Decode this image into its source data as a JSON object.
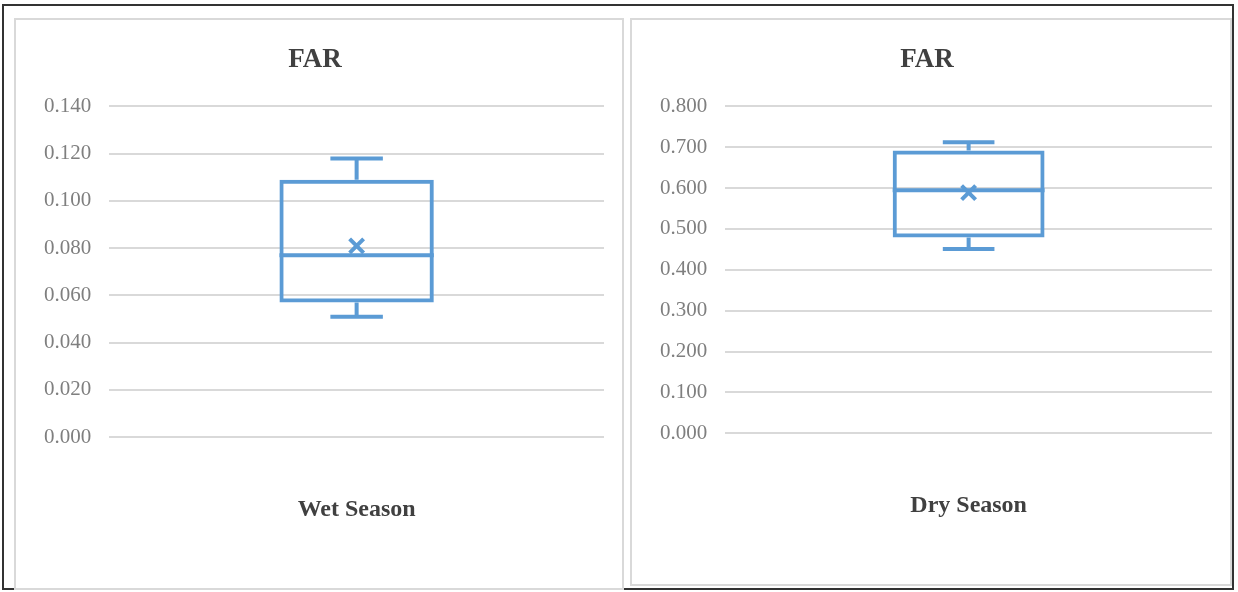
{
  "chart_data": [
    {
      "type": "box",
      "title": "FAR",
      "categories": [
        "Wet Season"
      ],
      "color": "#5b9bd5",
      "grid": "y",
      "boxes": [
        {
          "low": 0.051,
          "q1": 0.057,
          "median": 0.077,
          "q3": 0.109,
          "high": 0.118,
          "mean": 0.081
        }
      ],
      "ylim": [
        0,
        0.14
      ],
      "yticks": [
        {
          "value": 0,
          "label": "0.000"
        },
        {
          "value": 0.02,
          "label": "0.020"
        },
        {
          "value": 0.04,
          "label": "0.040"
        },
        {
          "value": 0.06,
          "label": "0.060"
        },
        {
          "value": 0.08,
          "label": "0.080"
        },
        {
          "value": 0.1,
          "label": "0.100"
        },
        {
          "value": 0.12,
          "label": "0.120"
        },
        {
          "value": 0.14,
          "label": "0.140"
        }
      ]
    },
    {
      "type": "box",
      "title": "FAR",
      "categories": [
        "Dry Season"
      ],
      "color": "#5b9bd5",
      "grid": "y",
      "boxes": [
        {
          "low": 0.451,
          "q1": 0.479,
          "median": 0.595,
          "q3": 0.692,
          "high": 0.712,
          "mean": 0.589
        }
      ],
      "ylim": [
        0,
        0.8
      ],
      "yticks": [
        {
          "value": 0,
          "label": "0.000"
        },
        {
          "value": 0.1,
          "label": "0.100"
        },
        {
          "value": 0.2,
          "label": "0.200"
        },
        {
          "value": 0.3,
          "label": "0.300"
        },
        {
          "value": 0.4,
          "label": "0.400"
        },
        {
          "value": 0.5,
          "label": "0.500"
        },
        {
          "value": 0.6,
          "label": "0.600"
        },
        {
          "value": 0.7,
          "label": "0.700"
        },
        {
          "value": 0.8,
          "label": "0.800"
        }
      ]
    }
  ]
}
